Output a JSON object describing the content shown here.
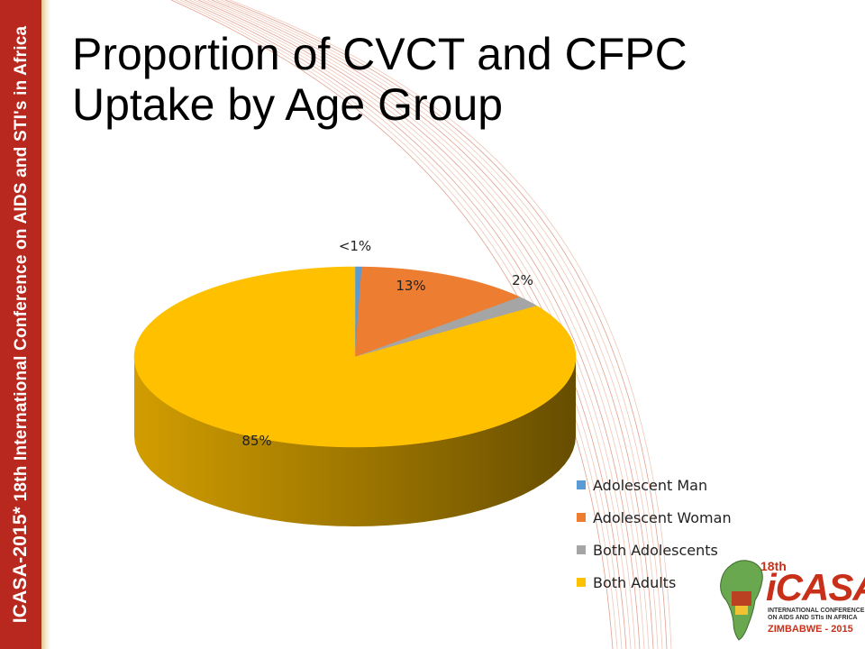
{
  "slide": {
    "title_lines": [
      "Proportion of CVCT and CFPC",
      "Uptake by Age Group"
    ],
    "sidebar_text_brand": "ICASA-2015*",
    "sidebar_text_rest": " 18th International Conference on AIDS and STI's in Africa",
    "accent_color": "#b8281e"
  },
  "logo": {
    "number": "18th",
    "name": "iCASA",
    "subtitle": "INTERNATIONAL CONFERENCE ON AIDS AND STIs IN AFRICA",
    "country": "ZIMBABWE - 2015"
  },
  "chart_data": {
    "type": "pie",
    "style": "3d",
    "series": [
      {
        "name": "Adolescent Man",
        "value": 0.5,
        "label": "<1%",
        "color": "#5b9bd5"
      },
      {
        "name": "Adolescent Woman",
        "value": 13,
        "label": "13%",
        "color": "#ed7d31"
      },
      {
        "name": "Both Adolescents",
        "value": 2,
        "label": "2%",
        "color": "#a5a5a5"
      },
      {
        "name": "Both Adults",
        "value": 85,
        "label": "85%",
        "color": "#ffc000"
      }
    ],
    "legend_position": "bottom-right"
  }
}
